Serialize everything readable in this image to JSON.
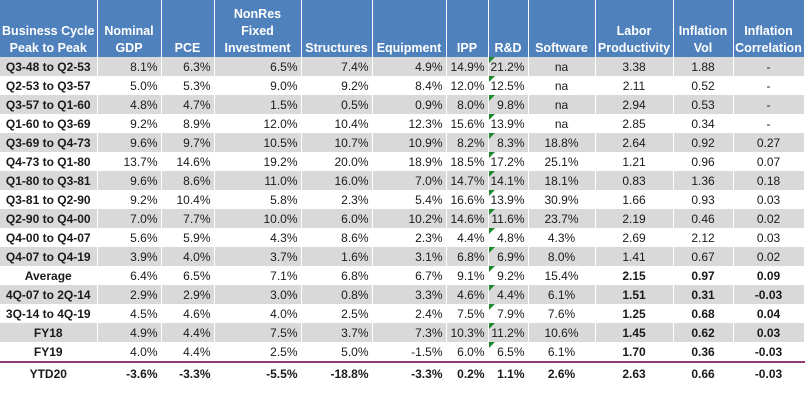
{
  "table": {
    "headers": [
      "Business Cycle Peak to Peak",
      "Nominal GDP",
      "PCE",
      "NonRes Fixed Investment",
      "Structures",
      "Equipment",
      "IPP",
      "R&D",
      "Software",
      "Labor Productivity",
      "Inflation Vol",
      "Inflation Correlation"
    ],
    "rows": [
      [
        "Q3-48 to Q2-53",
        "8.1%",
        "6.3%",
        "6.5%",
        "7.4%",
        "4.9%",
        "14.9%",
        "21.2%",
        "na",
        "3.38",
        "1.88",
        "-"
      ],
      [
        "Q2-53 to Q3-57",
        "5.0%",
        "5.3%",
        "9.0%",
        "9.2%",
        "8.4%",
        "12.0%",
        "12.5%",
        "na",
        "2.11",
        "0.52",
        "-"
      ],
      [
        "Q3-57 to Q1-60",
        "4.8%",
        "4.7%",
        "1.5%",
        "0.5%",
        "0.9%",
        "8.0%",
        "9.8%",
        "na",
        "2.94",
        "0.53",
        "-"
      ],
      [
        "Q1-60 to Q3-69",
        "9.2%",
        "8.9%",
        "12.0%",
        "10.4%",
        "12.3%",
        "15.6%",
        "13.9%",
        "na",
        "2.85",
        "0.34",
        "-"
      ],
      [
        "Q3-69 to Q4-73",
        "9.6%",
        "9.7%",
        "10.5%",
        "10.7%",
        "10.9%",
        "8.2%",
        "8.3%",
        "18.8%",
        "2.64",
        "0.92",
        "0.27"
      ],
      [
        "Q4-73 to Q1-80",
        "13.7%",
        "14.6%",
        "19.2%",
        "20.0%",
        "18.9%",
        "18.5%",
        "17.2%",
        "25.1%",
        "1.21",
        "0.96",
        "0.07"
      ],
      [
        "Q1-80 to Q3-81",
        "9.6%",
        "8.6%",
        "11.0%",
        "16.0%",
        "7.0%",
        "14.7%",
        "14.1%",
        "18.1%",
        "0.83",
        "1.36",
        "0.18"
      ],
      [
        "Q3-81 to Q2-90",
        "9.2%",
        "10.4%",
        "5.8%",
        "2.3%",
        "5.4%",
        "16.6%",
        "13.9%",
        "30.9%",
        "1.66",
        "0.93",
        "0.03"
      ],
      [
        "Q2-90 to Q4-00",
        "7.0%",
        "7.7%",
        "10.0%",
        "6.0%",
        "10.2%",
        "14.6%",
        "11.6%",
        "23.7%",
        "2.19",
        "0.46",
        "0.02"
      ],
      [
        "Q4-00 to Q4-07",
        "5.6%",
        "5.9%",
        "4.3%",
        "8.6%",
        "2.3%",
        "4.4%",
        "4.8%",
        "4.3%",
        "2.69",
        "2.12",
        "0.03"
      ],
      [
        "Q4-07 to Q4-19",
        "3.9%",
        "4.0%",
        "3.7%",
        "1.6%",
        "3.1%",
        "6.8%",
        "6.9%",
        "8.0%",
        "1.41",
        "0.67",
        "0.02"
      ],
      [
        "Average",
        "6.4%",
        "6.5%",
        "7.1%",
        "6.8%",
        "6.7%",
        "9.1%",
        "9.2%",
        "15.4%",
        "2.15",
        "0.97",
        "0.09"
      ],
      [
        "4Q-07 to 2Q-14",
        "2.9%",
        "2.9%",
        "3.0%",
        "0.8%",
        "3.3%",
        "4.6%",
        "4.4%",
        "6.1%",
        "1.51",
        "0.31",
        "-0.03"
      ],
      [
        "3Q-14 to 4Q-19",
        "4.5%",
        "4.6%",
        "4.0%",
        "2.5%",
        "2.4%",
        "7.5%",
        "7.9%",
        "7.6%",
        "1.25",
        "0.68",
        "0.04"
      ],
      [
        "FY18",
        "4.9%",
        "4.4%",
        "7.5%",
        "3.7%",
        "7.3%",
        "10.3%",
        "11.2%",
        "10.6%",
        "1.45",
        "0.62",
        "0.03"
      ],
      [
        "FY19",
        "4.0%",
        "4.4%",
        "2.5%",
        "5.0%",
        "-1.5%",
        "6.0%",
        "6.5%",
        "6.1%",
        "1.70",
        "0.36",
        "-0.03"
      ],
      [
        "YTD20",
        "-3.6%",
        "-3.3%",
        "-5.5%",
        "-18.8%",
        "-3.3%",
        "0.2%",
        "1.1%",
        "2.6%",
        "2.63",
        "0.66",
        "-0.03"
      ]
    ]
  },
  "colors": {
    "header_bg": "#4f81bd",
    "header_text": "#ffffff",
    "shaded_row": "#d9d9d9",
    "comment_marker": "#1e8a2e",
    "divider": "#8e3a76"
  }
}
